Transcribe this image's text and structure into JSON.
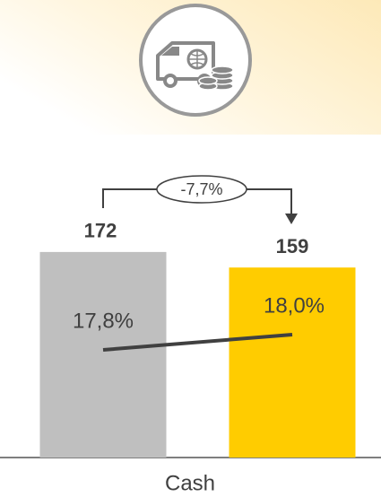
{
  "chart_data": {
    "type": "bar",
    "x_label": "Cash",
    "values": [
      172,
      159
    ],
    "colors": [
      "#bfbfbf",
      "#ffcc00"
    ],
    "line": {
      "values": [
        17.8,
        18.0
      ],
      "value_labels": [
        "17,8%",
        "18,0%"
      ],
      "color": "#404040"
    },
    "annotation": "-7,7%"
  }
}
